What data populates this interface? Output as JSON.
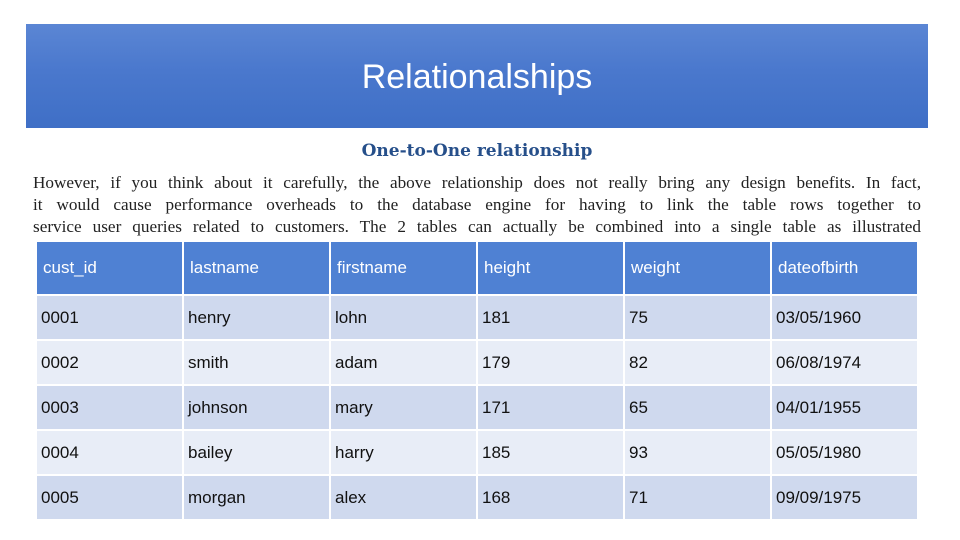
{
  "title": "Relationalships",
  "subtitle": "One-to-One relationship",
  "paragraph_lines": [
    "However, if you think about it carefully, the above relationship does not really bring any design benefits. In fact,",
    "it would cause performance overheads to the database engine for having to link the table rows together to",
    "service user queries related to customers. The 2 tables can actually be combined into a single table as illustrated"
  ],
  "table": {
    "headers": [
      "cust_id",
      "lastname",
      "firstname",
      "height",
      "weight",
      "dateofbirth"
    ],
    "rows": [
      [
        "0001",
        "henry",
        "lohn",
        "181",
        "75",
        "03/05/1960"
      ],
      [
        "0002",
        "smith",
        "adam",
        "179",
        "82",
        "06/08/1974"
      ],
      [
        "0003",
        "johnson",
        "mary",
        "171",
        "65",
        "04/01/1955"
      ],
      [
        "0004",
        "bailey",
        "harry",
        "185",
        "93",
        "05/05/1980"
      ],
      [
        "0005",
        "morgan",
        "alex",
        "168",
        "71",
        "09/09/1975"
      ]
    ]
  },
  "colors": {
    "banner": "#4a78cd",
    "header_row": "#4f81d3",
    "row_odd": "#cfd9ee",
    "row_even": "#e8edf7",
    "subtitle": "#264f8a"
  }
}
